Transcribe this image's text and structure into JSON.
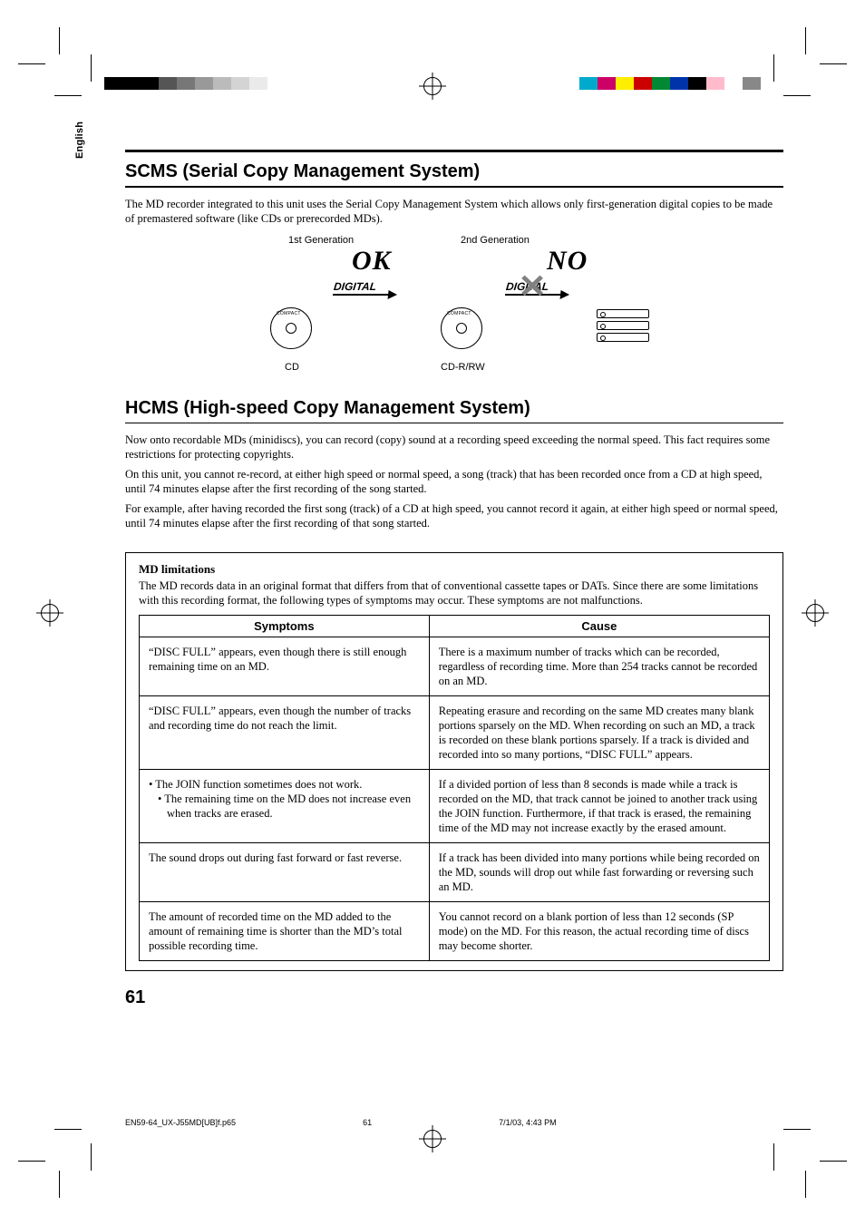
{
  "side_tab": "English",
  "scms": {
    "title": "SCMS (Serial Copy Management System)",
    "intro": "The MD recorder integrated to this unit uses the Serial Copy Management System which allows only first-generation digital copies to be made of premastered software (like CDs or prerecorded MDs).",
    "gen1": "1st Generation",
    "gen2": "2nd Generation",
    "ok": "OK",
    "no": "NO",
    "digital": "DIGITAL",
    "cd": "CD",
    "cdrrw": "CD-R/RW",
    "disc_brand": "COMPACT"
  },
  "hcms": {
    "title": "HCMS (High-speed Copy Management System)",
    "p1": "Now onto recordable MDs (minidiscs), you can record (copy) sound at a recording speed exceeding the normal speed. This fact requires some restrictions for protecting copyrights.",
    "p2": "On this unit, you cannot re-record, at either high speed or normal speed, a song (track) that has been recorded once from a CD at high speed, until 74 minutes elapse after the first recording of the song started.",
    "p3": "For example, after having recorded the first song (track) of a CD at high speed, you cannot record it again, at either high speed or normal speed, until 74 minutes elapse after the first recording of that song started."
  },
  "md": {
    "heading": "MD limitations",
    "intro": "The MD records data in an original format that differs from that of conventional cassette tapes or DATs. Since there are some limitations with this recording format, the following types of symptoms may occur. These symptoms are not malfunctions.",
    "table": {
      "columns": [
        "Symptoms",
        "Cause"
      ],
      "rows": [
        {
          "symptom": "“DISC FULL” appears, even though there is still enough remaining time on an MD.",
          "cause": "There is a maximum number of tracks which can be recorded, regardless of recording time. More than 254 tracks cannot be recorded on an MD."
        },
        {
          "symptom": "“DISC FULL” appears, even though the number of tracks and recording time do not reach the limit.",
          "cause": "Repeating erasure and recording on the same MD creates many blank portions sparsely on the MD. When recording on such an MD, a track is recorded on these blank portions sparsely. If a track is divided and recorded into so many portions, “DISC FULL” appears."
        },
        {
          "symptom_list": [
            "• The JOIN function sometimes does not work.",
            "• The remaining time on the MD does not increase even when tracks are erased."
          ],
          "cause": "If a divided portion of less than 8 seconds is made while a track is recorded on the MD, that track cannot be joined to another track using the JOIN function. Furthermore, if that track is erased, the remaining time of the MD may not increase exactly by the erased amount."
        },
        {
          "symptom": "The sound drops out during fast forward or fast reverse.",
          "cause": "If a track has been divided into many portions while being recorded on the MD, sounds will drop out while fast forwarding or reversing such an MD."
        },
        {
          "symptom": "The amount of recorded time on the MD added to the amount of remaining time is shorter than the MD’s total possible recording time.",
          "cause": "You cannot record on a blank portion of less than 12 seconds (SP mode) on the MD. For this reason, the actual recording time of discs may become shorter."
        }
      ]
    }
  },
  "page_number": "61",
  "footer": {
    "file": "EN59-64_UX-J55MD[UB]f.p65",
    "pg": "61",
    "stamp": "7/1/03, 4:43 PM"
  },
  "colors": {
    "grey_swatches": [
      "#000000",
      "#000000",
      "#000000",
      "#555555",
      "#777777",
      "#999999",
      "#bbbbbb",
      "#d4d4d4",
      "#eaeaea",
      "#ffffff"
    ],
    "color_swatches": [
      "#00aacc",
      "#cc0066",
      "#ffee00",
      "#cc0000",
      "#008833",
      "#0033aa",
      "#000000",
      "#ffbbcc",
      "#ffffff",
      "#888888"
    ]
  }
}
